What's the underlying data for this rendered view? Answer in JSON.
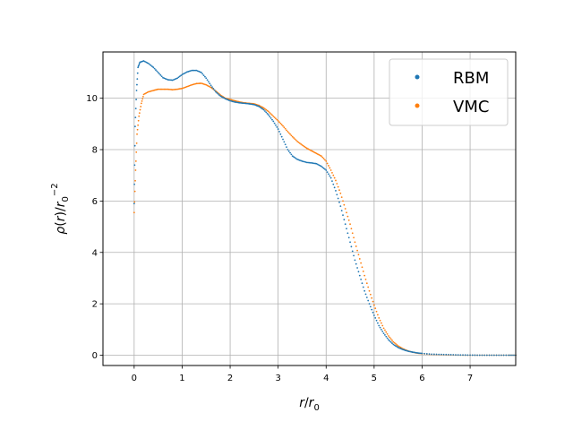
{
  "chart_data": {
    "type": "scatter",
    "title": "",
    "xlabel": "r/r0",
    "ylabel": "ρ(r)/r0^-2",
    "xlim": [
      -0.65,
      7.95
    ],
    "ylim": [
      -0.4,
      11.8
    ],
    "xticks": [
      0,
      1,
      2,
      3,
      4,
      5,
      6,
      7
    ],
    "yticks": [
      0,
      2,
      4,
      6,
      8,
      10
    ],
    "grid": true,
    "legend": {
      "placement": "top-right",
      "entries": [
        "RBM",
        "VMC"
      ]
    },
    "series": [
      {
        "name": "RBM",
        "color": "#1f77b4",
        "x": [
          0.0,
          0.02,
          0.05,
          0.08,
          0.12,
          0.2,
          0.3,
          0.4,
          0.5,
          0.6,
          0.7,
          0.8,
          0.9,
          1.0,
          1.1,
          1.2,
          1.3,
          1.4,
          1.5,
          1.6,
          1.7,
          1.8,
          1.9,
          2.0,
          2.1,
          2.2,
          2.3,
          2.4,
          2.5,
          2.6,
          2.7,
          2.8,
          2.9,
          3.0,
          3.1,
          3.2,
          3.3,
          3.4,
          3.5,
          3.6,
          3.7,
          3.8,
          3.9,
          4.0,
          4.1,
          4.2,
          4.3,
          4.4,
          4.5,
          4.6,
          4.7,
          4.8,
          4.9,
          5.0,
          5.1,
          5.2,
          5.3,
          5.4,
          5.5,
          5.6,
          5.7,
          5.8,
          5.9,
          6.0,
          6.2,
          6.4,
          6.6,
          6.8,
          7.0,
          7.2,
          7.4,
          7.6,
          7.8,
          7.95
        ],
        "y": [
          5.9,
          8.9,
          10.3,
          11.2,
          11.4,
          11.45,
          11.35,
          11.2,
          11.0,
          10.8,
          10.72,
          10.7,
          10.78,
          10.92,
          11.02,
          11.08,
          11.08,
          11.0,
          10.78,
          10.5,
          10.25,
          10.08,
          9.98,
          9.9,
          9.85,
          9.82,
          9.8,
          9.78,
          9.75,
          9.68,
          9.55,
          9.35,
          9.1,
          8.8,
          8.4,
          8.0,
          7.75,
          7.62,
          7.55,
          7.5,
          7.48,
          7.45,
          7.35,
          7.2,
          6.9,
          6.4,
          5.8,
          5.1,
          4.4,
          3.7,
          3.1,
          2.5,
          2.0,
          1.55,
          1.15,
          0.85,
          0.6,
          0.42,
          0.3,
          0.22,
          0.16,
          0.12,
          0.09,
          0.07,
          0.04,
          0.03,
          0.02,
          0.01,
          0.005,
          0.0,
          0.0,
          0.0,
          0.0,
          0.0
        ]
      },
      {
        "name": "VMC",
        "color": "#ff7f0e",
        "x": [
          0.0,
          0.03,
          0.06,
          0.1,
          0.15,
          0.2,
          0.3,
          0.4,
          0.5,
          0.6,
          0.7,
          0.8,
          0.9,
          1.0,
          1.1,
          1.2,
          1.3,
          1.4,
          1.5,
          1.6,
          1.7,
          1.8,
          1.9,
          2.0,
          2.1,
          2.2,
          2.3,
          2.4,
          2.5,
          2.6,
          2.7,
          2.8,
          2.9,
          3.0,
          3.1,
          3.2,
          3.3,
          3.4,
          3.5,
          3.6,
          3.7,
          3.8,
          3.9,
          4.0,
          4.1,
          4.2,
          4.3,
          4.4,
          4.5,
          4.6,
          4.7,
          4.8,
          4.9,
          5.0,
          5.1,
          5.2,
          5.3,
          5.4,
          5.5,
          5.6,
          5.7,
          5.8,
          5.9,
          6.0,
          6.2,
          6.4,
          6.6,
          6.8,
          7.0,
          7.2,
          7.4,
          7.6,
          7.8,
          7.95
        ],
        "y": [
          5.55,
          7.2,
          8.6,
          9.3,
          9.8,
          10.15,
          10.25,
          10.3,
          10.35,
          10.35,
          10.35,
          10.33,
          10.35,
          10.38,
          10.45,
          10.52,
          10.57,
          10.58,
          10.52,
          10.42,
          10.28,
          10.12,
          10.0,
          9.95,
          9.9,
          9.85,
          9.82,
          9.8,
          9.78,
          9.72,
          9.62,
          9.48,
          9.3,
          9.12,
          8.92,
          8.7,
          8.5,
          8.32,
          8.18,
          8.05,
          7.95,
          7.85,
          7.75,
          7.55,
          7.2,
          6.8,
          6.3,
          5.7,
          5.1,
          4.4,
          3.75,
          3.1,
          2.5,
          1.95,
          1.45,
          1.05,
          0.75,
          0.52,
          0.36,
          0.25,
          0.17,
          0.12,
          0.08,
          0.06,
          0.03,
          0.02,
          0.01,
          0.005,
          0.0,
          0.0,
          0.0,
          0.0,
          0.0,
          0.0
        ]
      }
    ]
  }
}
